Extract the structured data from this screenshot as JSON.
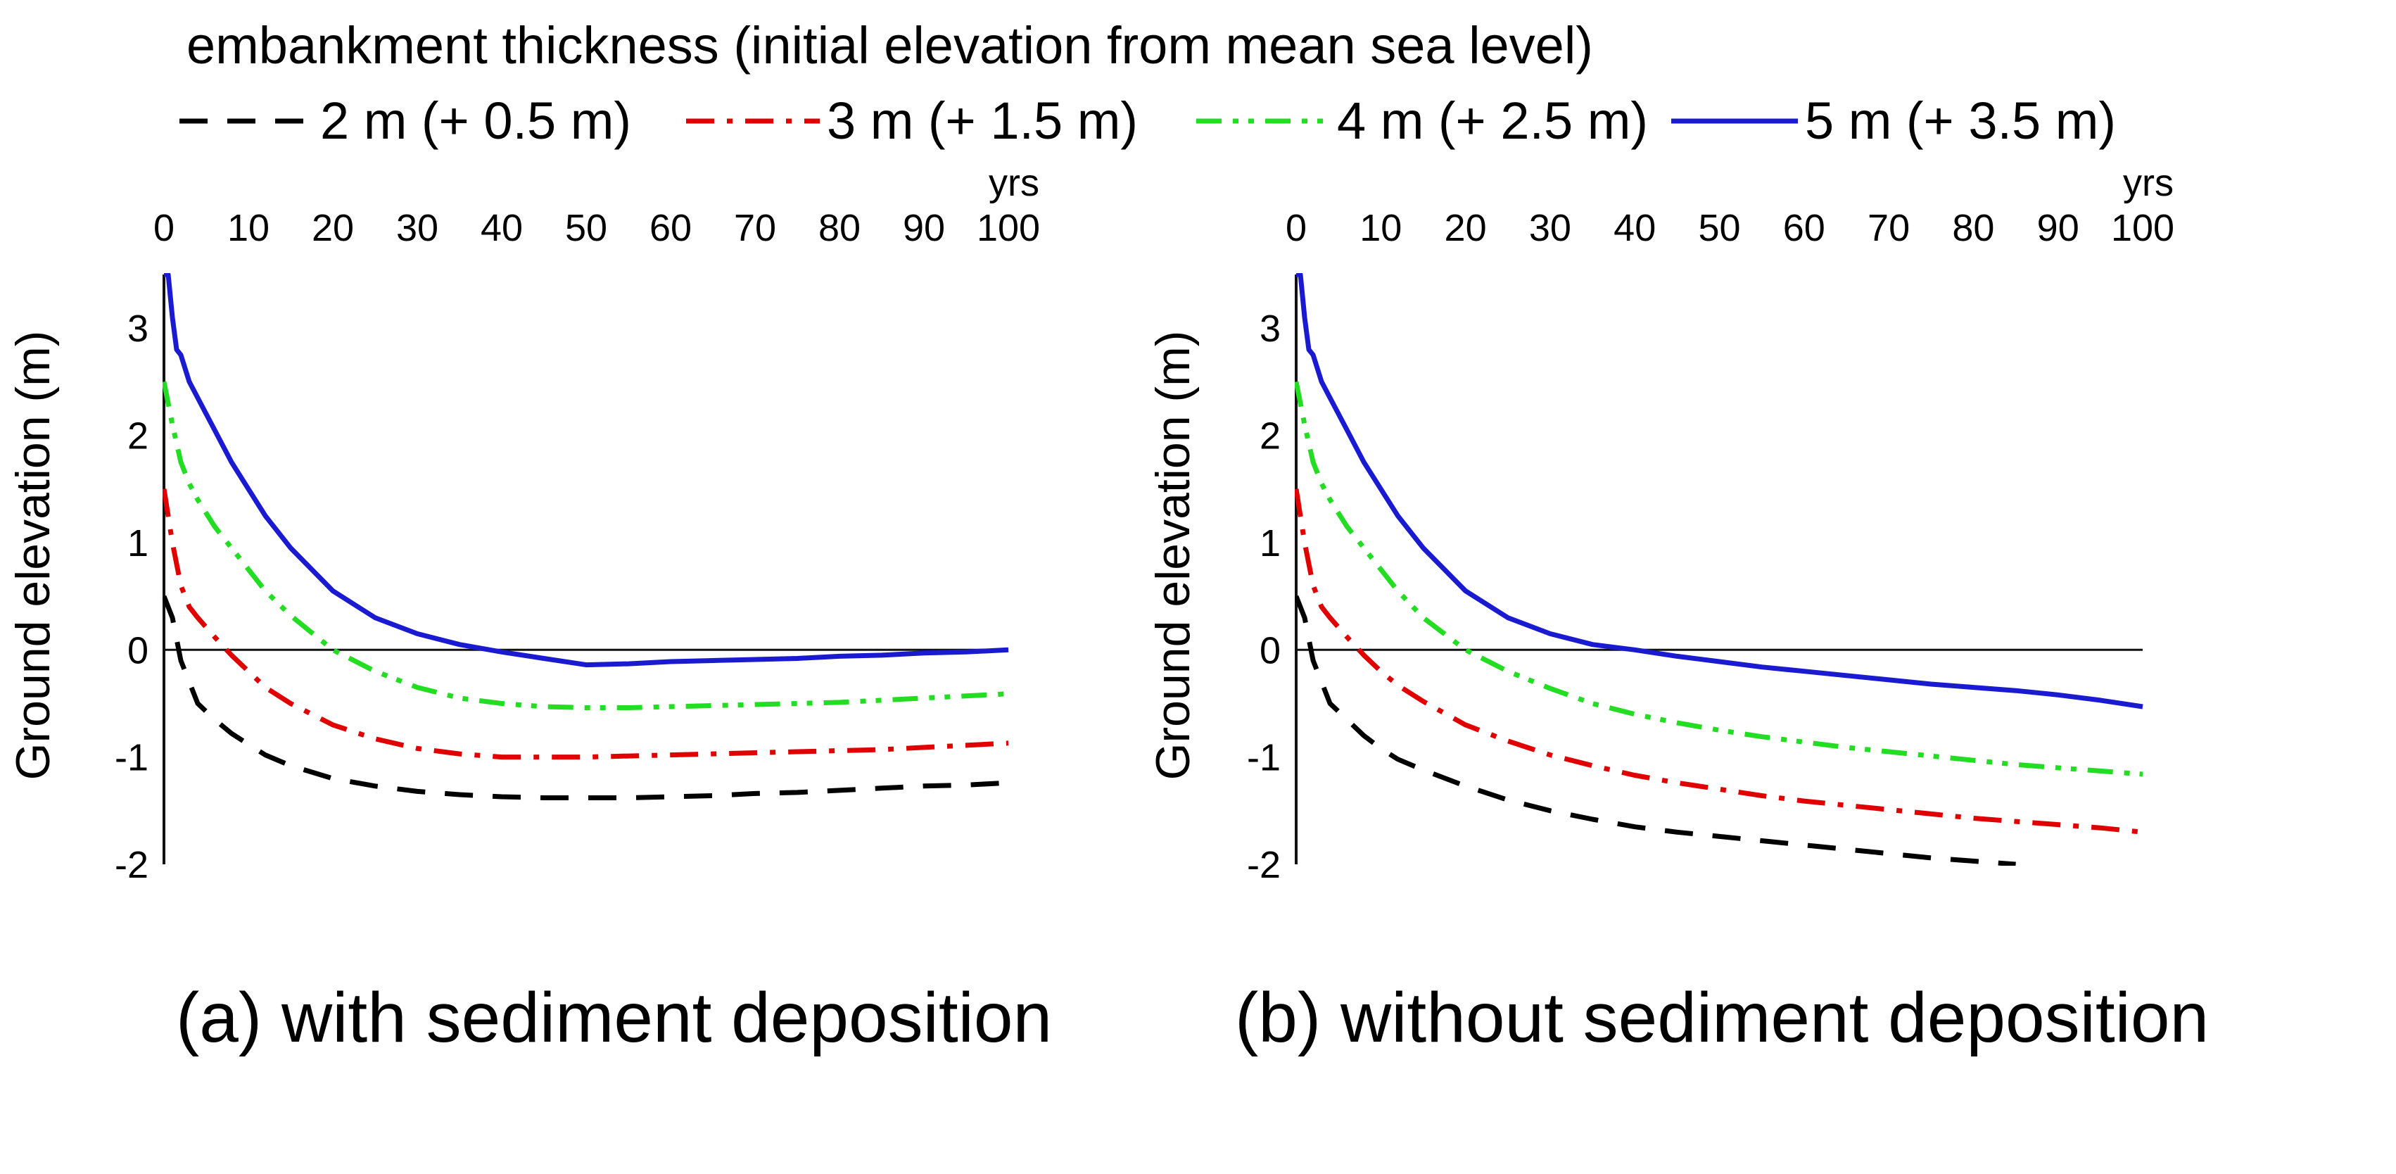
{
  "legend": {
    "title": "embankment thickness (initial elevation from mean sea level)",
    "entries": [
      {
        "label": "2 m (+ 0.5 m)",
        "color": "#000000",
        "dash": "dashed"
      },
      {
        "label": "3 m (+ 1.5 m)",
        "color": "#e00000",
        "dash": "dash-dot"
      },
      {
        "label": "4 m (+ 2.5 m)",
        "color": "#22dd22",
        "dash": "dash-dot-dot"
      },
      {
        "label": "5 m (+ 3.5 m)",
        "color": "#1a1ad0",
        "dash": "solid"
      }
    ]
  },
  "chart_data": [
    {
      "type": "line",
      "caption": "(a) with sediment deposition",
      "xlabel": "yrs",
      "ylabel": "Ground elevation (m)",
      "xlim": [
        0,
        100
      ],
      "ylim": [
        -2,
        3.5
      ],
      "xticks": [
        "0",
        "10",
        "20",
        "30",
        "40",
        "50",
        "60",
        "70",
        "80",
        "90",
        "100"
      ],
      "yticks": [
        "-2",
        "-1",
        "0",
        "1",
        "2",
        "3"
      ],
      "x_axis_position": "top",
      "reference_line_y": 0,
      "series": [
        {
          "name": "2 m (+ 0.5 m)",
          "x": [
            0,
            1,
            2,
            4,
            6,
            8,
            10,
            12,
            15,
            20,
            25,
            30,
            35,
            40,
            45,
            50,
            55,
            60,
            65,
            70,
            75,
            80,
            85,
            90,
            95,
            100
          ],
          "y": [
            0.5,
            0.3,
            -0.1,
            -0.5,
            -0.65,
            -0.78,
            -0.88,
            -0.98,
            -1.08,
            -1.2,
            -1.27,
            -1.32,
            -1.35,
            -1.37,
            -1.38,
            -1.38,
            -1.38,
            -1.37,
            -1.36,
            -1.34,
            -1.33,
            -1.31,
            -1.29,
            -1.27,
            -1.26,
            -1.24
          ]
        },
        {
          "name": "3 m (+ 1.5 m)",
          "x": [
            0,
            1,
            2,
            3,
            4,
            6,
            8,
            10,
            12,
            15,
            20,
            25,
            30,
            35,
            40,
            45,
            50,
            55,
            60,
            65,
            70,
            75,
            80,
            85,
            90,
            95,
            100
          ],
          "y": [
            1.5,
            1.0,
            0.6,
            0.4,
            0.3,
            0.12,
            -0.05,
            -0.2,
            -0.35,
            -0.5,
            -0.7,
            -0.83,
            -0.92,
            -0.97,
            -1.0,
            -1.0,
            -1.0,
            -0.99,
            -0.98,
            -0.97,
            -0.96,
            -0.95,
            -0.94,
            -0.93,
            -0.91,
            -0.89,
            -0.87
          ]
        },
        {
          "name": "4 m (+ 2.5 m)",
          "x": [
            0,
            1,
            2,
            3,
            4,
            6,
            8,
            10,
            12,
            15,
            20,
            25,
            30,
            35,
            40,
            45,
            50,
            55,
            60,
            65,
            70,
            75,
            80,
            85,
            90,
            95,
            100
          ],
          "y": [
            2.5,
            2.1,
            1.75,
            1.55,
            1.4,
            1.15,
            0.95,
            0.75,
            0.55,
            0.32,
            0.0,
            -0.2,
            -0.35,
            -0.45,
            -0.5,
            -0.53,
            -0.54,
            -0.54,
            -0.53,
            -0.52,
            -0.51,
            -0.5,
            -0.49,
            -0.47,
            -0.45,
            -0.43,
            -0.41
          ]
        },
        {
          "name": "5 m (+ 3.5 m)",
          "x": [
            0,
            0.5,
            1,
            1.5,
            2,
            3,
            4,
            5,
            6,
            8,
            10,
            12,
            15,
            20,
            25,
            30,
            35,
            40,
            45,
            50,
            55,
            60,
            65,
            70,
            75,
            80,
            85,
            90,
            95,
            100
          ],
          "y": [
            3.5,
            3.5,
            3.1,
            2.8,
            2.75,
            2.5,
            2.35,
            2.2,
            2.05,
            1.75,
            1.5,
            1.25,
            0.95,
            0.55,
            0.3,
            0.15,
            0.05,
            -0.02,
            -0.08,
            -0.14,
            -0.13,
            -0.11,
            -0.1,
            -0.09,
            -0.08,
            -0.06,
            -0.05,
            -0.03,
            -0.02,
            0.0
          ]
        }
      ]
    },
    {
      "type": "line",
      "caption": "(b) without sediment deposition",
      "xlabel": "yrs",
      "ylabel": "Ground elevation (m)",
      "xlim": [
        0,
        100
      ],
      "ylim": [
        -2,
        3.5
      ],
      "xticks": [
        "0",
        "10",
        "20",
        "30",
        "40",
        "50",
        "60",
        "70",
        "80",
        "90",
        "100"
      ],
      "yticks": [
        "-2",
        "-1",
        "0",
        "1",
        "2",
        "3"
      ],
      "x_axis_position": "top",
      "reference_line_y": 0,
      "series": [
        {
          "name": "2 m (+ 0.5 m)",
          "x": [
            0,
            1,
            2,
            4,
            6,
            8,
            10,
            12,
            15,
            20,
            25,
            30,
            35,
            40,
            45,
            50,
            55,
            60,
            65,
            70,
            75,
            80,
            85
          ],
          "y": [
            0.5,
            0.3,
            -0.1,
            -0.5,
            -0.65,
            -0.8,
            -0.92,
            -1.02,
            -1.12,
            -1.27,
            -1.4,
            -1.5,
            -1.58,
            -1.65,
            -1.7,
            -1.74,
            -1.78,
            -1.82,
            -1.86,
            -1.9,
            -1.94,
            -1.97,
            -2.0
          ]
        },
        {
          "name": "3 m (+ 1.5 m)",
          "x": [
            0,
            1,
            2,
            3,
            4,
            6,
            8,
            10,
            12,
            15,
            20,
            25,
            30,
            35,
            40,
            45,
            50,
            55,
            60,
            65,
            70,
            75,
            80,
            85,
            90,
            95,
            100
          ],
          "y": [
            1.5,
            1.0,
            0.6,
            0.4,
            0.3,
            0.12,
            -0.05,
            -0.2,
            -0.33,
            -0.48,
            -0.7,
            -0.85,
            -0.98,
            -1.08,
            -1.17,
            -1.24,
            -1.3,
            -1.36,
            -1.41,
            -1.45,
            -1.49,
            -1.53,
            -1.57,
            -1.6,
            -1.63,
            -1.66,
            -1.7
          ]
        },
        {
          "name": "4 m (+ 2.5 m)",
          "x": [
            0,
            1,
            2,
            3,
            4,
            6,
            8,
            10,
            12,
            15,
            20,
            25,
            30,
            35,
            40,
            45,
            50,
            55,
            60,
            65,
            70,
            75,
            80,
            85,
            90,
            95,
            100
          ],
          "y": [
            2.5,
            2.1,
            1.75,
            1.55,
            1.4,
            1.15,
            0.95,
            0.75,
            0.55,
            0.3,
            0.0,
            -0.2,
            -0.36,
            -0.5,
            -0.6,
            -0.68,
            -0.75,
            -0.81,
            -0.86,
            -0.91,
            -0.95,
            -0.99,
            -1.03,
            -1.07,
            -1.1,
            -1.13,
            -1.16
          ]
        },
        {
          "name": "5 m (+ 3.5 m)",
          "x": [
            0,
            0.5,
            1,
            1.5,
            2,
            3,
            4,
            5,
            6,
            8,
            10,
            12,
            15,
            20,
            25,
            30,
            35,
            40,
            45,
            50,
            55,
            60,
            65,
            70,
            75,
            80,
            85,
            90,
            95,
            100
          ],
          "y": [
            3.5,
            3.5,
            3.1,
            2.8,
            2.75,
            2.5,
            2.35,
            2.2,
            2.05,
            1.75,
            1.5,
            1.25,
            0.95,
            0.55,
            0.3,
            0.15,
            0.05,
            0.0,
            -0.06,
            -0.11,
            -0.16,
            -0.2,
            -0.24,
            -0.28,
            -0.32,
            -0.35,
            -0.38,
            -0.42,
            -0.47,
            -0.53
          ]
        }
      ]
    }
  ]
}
